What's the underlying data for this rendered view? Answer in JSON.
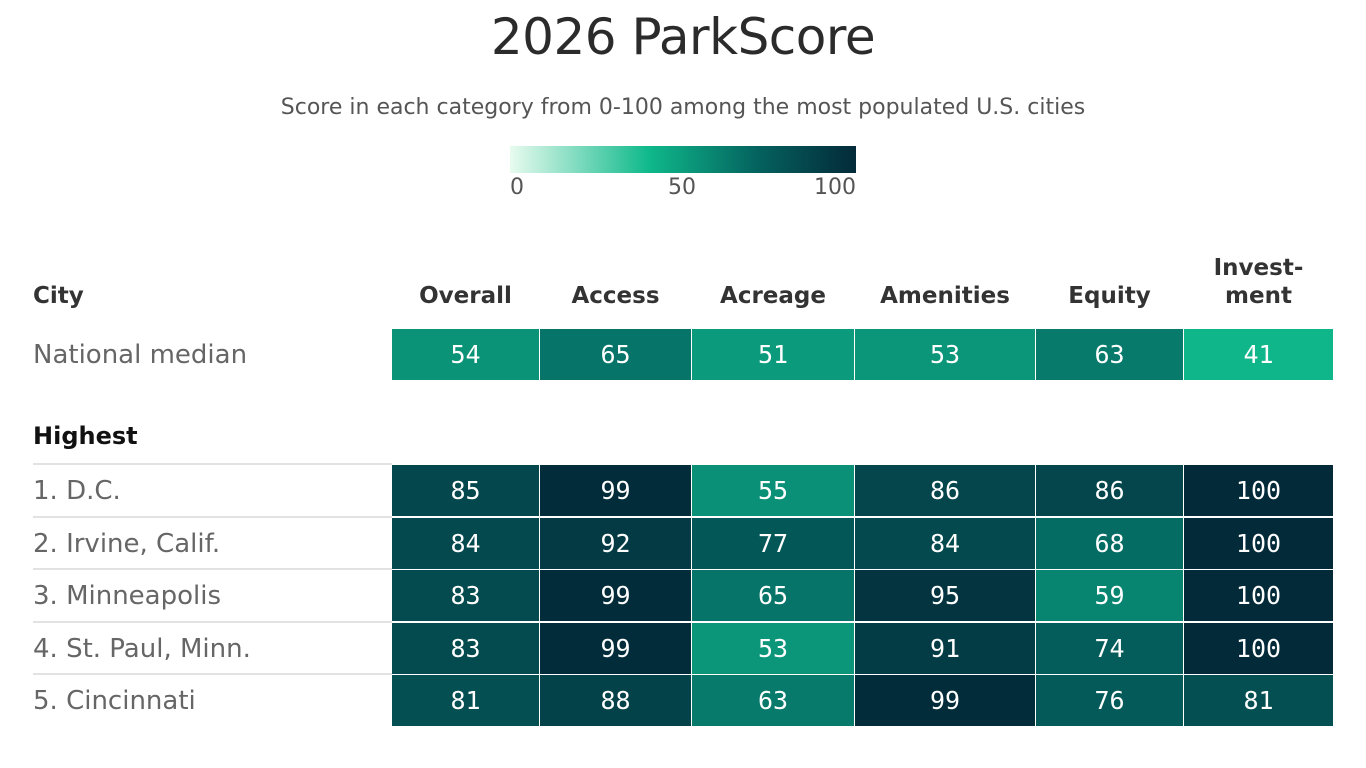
{
  "chart_data": {
    "type": "heatmap",
    "title": "2026 ParkScore",
    "subtitle": "Score in each category from 0-100 among the most populated U.S. cities",
    "legend": {
      "min": 0,
      "mid": 50,
      "max": 100,
      "tick_labels": [
        "0",
        "50",
        "100"
      ],
      "colors": [
        "#e8fbef",
        "#0fb98b",
        "#04615e",
        "#032a39"
      ]
    },
    "row_header": "City",
    "columns": [
      "Overall",
      "Access",
      "Acreage",
      "Amenities",
      "Equity",
      "Invest-\nment"
    ],
    "median_row": {
      "label": "National median",
      "values": [
        54,
        65,
        51,
        53,
        63,
        41
      ]
    },
    "section_label": "Highest",
    "rows": [
      {
        "label": "1. D.C.",
        "values": [
          85,
          99,
          55,
          86,
          86,
          100
        ]
      },
      {
        "label": "2. Irvine, Calif.",
        "values": [
          84,
          92,
          77,
          84,
          68,
          100
        ]
      },
      {
        "label": "3. Minneapolis",
        "values": [
          83,
          99,
          65,
          95,
          59,
          100
        ]
      },
      {
        "label": "4. St. Paul, Minn.",
        "values": [
          83,
          99,
          53,
          91,
          74,
          100
        ]
      },
      {
        "label": "5. Cincinnati",
        "values": [
          81,
          88,
          63,
          99,
          76,
          81
        ]
      }
    ]
  }
}
